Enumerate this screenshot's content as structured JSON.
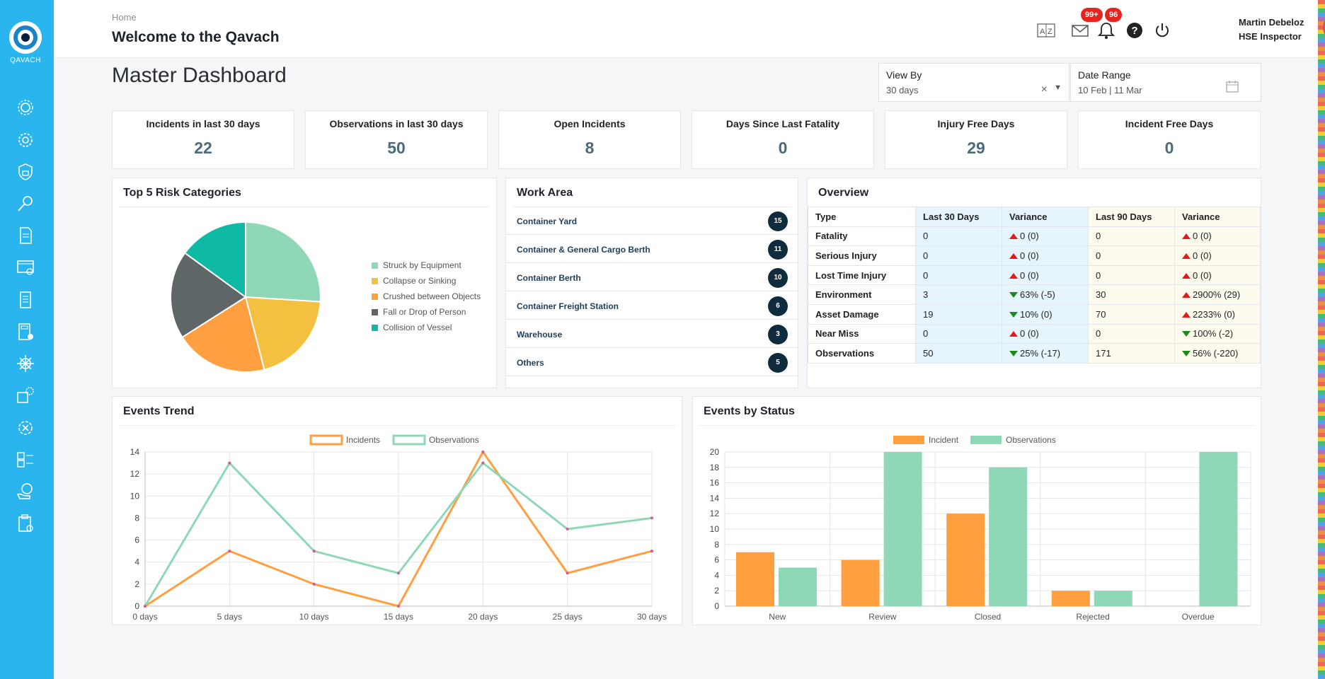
{
  "app": {
    "logo_text": "QAVACH"
  },
  "header": {
    "breadcrumb": "Home",
    "welcome": "Welcome to the Qavach",
    "mail_badge": "99+",
    "bell_badge": "96",
    "user_name": "Martin Debeloz",
    "user_role": "HSE Inspector"
  },
  "sidebar": {
    "items": [
      "gears",
      "settings",
      "security-shield",
      "inspection-search",
      "report-document",
      "dashboard-window",
      "checklist-document",
      "calculator",
      "helm-wheel",
      "equipment-settings",
      "tools-gear",
      "forms-list",
      "hands-globe",
      "clipboard"
    ]
  },
  "page": {
    "title": "Master Dashboard"
  },
  "filters": {
    "view_by_label": "View By",
    "view_by_value": "30 days",
    "date_range_label": "Date Range",
    "date_range_value": "10 Feb | 11 Mar"
  },
  "kpis": [
    {
      "label": "Incidents in last 30 days",
      "value": "22"
    },
    {
      "label": "Observations in last 30 days",
      "value": "50"
    },
    {
      "label": "Open Incidents",
      "value": "8"
    },
    {
      "label": "Days Since Last Fatality",
      "value": "0"
    },
    {
      "label": "Injury Free Days",
      "value": "29"
    },
    {
      "label": "Incident Free Days",
      "value": "0"
    }
  ],
  "risk": {
    "title": "Top 5 Risk Categories"
  },
  "work_area": {
    "title": "Work Area",
    "rows": [
      {
        "name": "Container Yard",
        "count": "15"
      },
      {
        "name": "Container & General Cargo Berth",
        "count": "11"
      },
      {
        "name": "Container Berth",
        "count": "10"
      },
      {
        "name": "Container Freight Station",
        "count": "6"
      },
      {
        "name": "Warehouse",
        "count": "3"
      },
      {
        "name": "Others",
        "count": "5"
      }
    ]
  },
  "overview": {
    "title": "Overview",
    "headers": [
      "Type",
      "Last 30 Days",
      "Variance",
      "Last 90 Days",
      "Variance"
    ],
    "rows": [
      {
        "type": "Fatality",
        "l30": "0",
        "v30": "0 (0)",
        "v30_dir": "up",
        "l90": "0",
        "v90": "0 (0)",
        "v90_dir": "up"
      },
      {
        "type": "Serious Injury",
        "l30": "0",
        "v30": "0 (0)",
        "v30_dir": "up",
        "l90": "0",
        "v90": "0 (0)",
        "v90_dir": "up"
      },
      {
        "type": "Lost Time Injury",
        "l30": "0",
        "v30": "0 (0)",
        "v30_dir": "up",
        "l90": "0",
        "v90": "0 (0)",
        "v90_dir": "up"
      },
      {
        "type": "Environment",
        "l30": "3",
        "v30": "63% (-5)",
        "v30_dir": "down",
        "l90": "30",
        "v90": "2900% (29)",
        "v90_dir": "up"
      },
      {
        "type": "Asset Damage",
        "l30": "19",
        "v30": "10% (0)",
        "v30_dir": "down",
        "l90": "70",
        "v90": "2233% (0)",
        "v90_dir": "up"
      },
      {
        "type": "Near Miss",
        "l30": "0",
        "v30": "0 (0)",
        "v30_dir": "up",
        "l90": "0",
        "v90": "100% (-2)",
        "v90_dir": "down"
      },
      {
        "type": "Observations",
        "l30": "50",
        "v30": "25% (-17)",
        "v30_dir": "down",
        "l90": "171",
        "v90": "56% (-220)",
        "v90_dir": "down"
      }
    ]
  },
  "trend_panel": {
    "title": "Events Trend"
  },
  "status_panel": {
    "title": "Events by Status"
  },
  "colors": {
    "sidebar": "#2ab5ee",
    "incident": "#ff9f40",
    "observation": "#8ed8b7",
    "pie": [
      "#8ed8b7",
      "#f4c03f",
      "#ff9f40",
      "#5e6667",
      "#0fbaa5"
    ]
  },
  "chart_data": [
    {
      "type": "pie",
      "title": "Top 5 Risk Categories",
      "labels": [
        "Struck by Equipment",
        "Collapse or Sinking",
        "Crushed between Objects",
        "Fall or Drop of Person",
        "Collision of Vessel"
      ],
      "values": [
        26,
        20,
        20,
        19,
        15
      ],
      "legend": "right"
    },
    {
      "type": "line",
      "title": "Events Trend",
      "x": [
        "0 days",
        "5 days",
        "10 days",
        "15 days",
        "20 days",
        "25 days",
        "30 days"
      ],
      "series": [
        {
          "name": "Incidents",
          "values": [
            0,
            5,
            2,
            0,
            14,
            3,
            5
          ]
        },
        {
          "name": "Observations",
          "values": [
            0,
            13,
            5,
            3,
            13,
            7,
            8
          ]
        }
      ],
      "ylim": [
        0,
        14
      ],
      "yticks": [
        0,
        2,
        4,
        6,
        8,
        10,
        12,
        14
      ],
      "legend": "top",
      "grid": true
    },
    {
      "type": "bar",
      "title": "Events by Status",
      "categories": [
        "New",
        "Review",
        "Closed",
        "Rejected",
        "Overdue"
      ],
      "series": [
        {
          "name": "Incident",
          "values": [
            7,
            6,
            12,
            2,
            0
          ]
        },
        {
          "name": "Observations",
          "values": [
            5,
            20,
            18,
            2,
            20
          ]
        }
      ],
      "ylim": [
        0,
        20
      ],
      "yticks": [
        0,
        2,
        4,
        6,
        8,
        10,
        12,
        14,
        16,
        18,
        20
      ],
      "legend": "top",
      "grid": true
    }
  ]
}
